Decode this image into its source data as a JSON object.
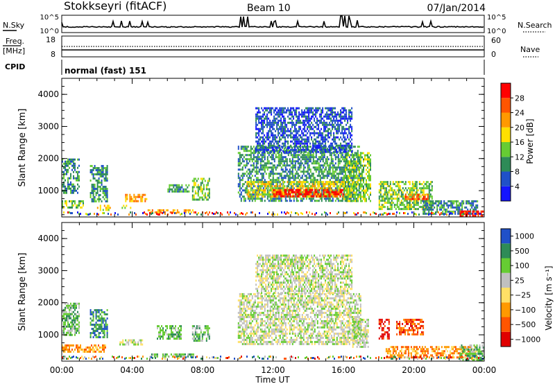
{
  "header": {
    "station": "Stokkseyri (fitACF)",
    "beam": "Beam 10",
    "date": "07/Jan/2014"
  },
  "panel_nsky": {
    "left_label": "N.Sky",
    "left_ticks": [
      "10^5",
      "10^0"
    ],
    "right_label": "N.Search",
    "right_ticks": [
      "10^5",
      "10^0"
    ]
  },
  "panel_freq": {
    "left_label_1": "Freq.",
    "left_label_2": "[MHz]",
    "left_ticks": [
      "18",
      "8"
    ],
    "right_label": "Nave",
    "right_ticks": [
      "60",
      "0"
    ]
  },
  "panel_cpid": {
    "label": "CPID",
    "value": "normal (fast) 151"
  },
  "colors": {
    "power": [
      "#1414ff",
      "#2050c8",
      "#2e8b57",
      "#66cc33",
      "#ffe000",
      "#ff9900",
      "#ff5500",
      "#ff0000"
    ],
    "velocity": [
      "#e00000",
      "#ff5500",
      "#ff9900",
      "#ffe066",
      "#c0c0c0",
      "#66cc33",
      "#2e8b57",
      "#2050c8"
    ]
  },
  "chart_data": [
    {
      "type": "heatmap",
      "name": "power",
      "ylabel": "Slant Range [km]",
      "yticks": [
        "1000",
        "2000",
        "3000",
        "4000"
      ],
      "ylim": [
        180,
        4500
      ],
      "xticks": [
        "00:00",
        "04:00",
        "08:00",
        "12:00",
        "16:00",
        "20:00",
        "00:00"
      ],
      "xlim": [
        0,
        24
      ],
      "colorbar_label": "Power [dB]",
      "colorbar_ticks": [
        "4",
        "8",
        "12",
        "16",
        "20",
        "24",
        "28"
      ],
      "colorbar_range": [
        0,
        30
      ],
      "regions": [
        {
          "t0": 0.0,
          "t1": 1.0,
          "r0": 900,
          "r1": 2000,
          "level": 2
        },
        {
          "t0": 0.0,
          "t1": 1.2,
          "r0": 500,
          "r1": 700,
          "level": 3
        },
        {
          "t0": 1.6,
          "t1": 2.6,
          "r0": 650,
          "r1": 1800,
          "level": 2
        },
        {
          "t0": 2.0,
          "t1": 2.8,
          "r0": 420,
          "r1": 560,
          "level": 4
        },
        {
          "t0": 3.6,
          "t1": 4.8,
          "r0": 700,
          "r1": 900,
          "level": 5
        },
        {
          "t0": 3.4,
          "t1": 3.9,
          "r0": 480,
          "r1": 560,
          "level": 4
        },
        {
          "t0": 4.8,
          "t1": 7.5,
          "r0": 300,
          "r1": 420,
          "level": 5
        },
        {
          "t0": 6.0,
          "t1": 7.2,
          "r0": 950,
          "r1": 1200,
          "level": 2
        },
        {
          "t0": 7.4,
          "t1": 8.4,
          "r0": 750,
          "r1": 1400,
          "level": 3
        },
        {
          "t0": 10.0,
          "t1": 17.0,
          "r0": 700,
          "r1": 2400,
          "level": 2
        },
        {
          "t0": 10.5,
          "t1": 16.5,
          "r0": 800,
          "r1": 1300,
          "level": 4
        },
        {
          "t0": 12.0,
          "t1": 16.0,
          "r0": 850,
          "r1": 1050,
          "level": 7
        },
        {
          "t0": 11.0,
          "t1": 16.5,
          "r0": 2200,
          "r1": 3600,
          "level": 1
        },
        {
          "t0": 16.0,
          "t1": 17.5,
          "r0": 700,
          "r1": 2200,
          "level": 3
        },
        {
          "t0": 18.0,
          "t1": 21.0,
          "r0": 400,
          "r1": 1300,
          "level": 3
        },
        {
          "t0": 19.5,
          "t1": 20.8,
          "r0": 750,
          "r1": 900,
          "level": 6
        },
        {
          "t0": 20.5,
          "t1": 23.6,
          "r0": 250,
          "r1": 700,
          "level": 2
        },
        {
          "t0": 22.6,
          "t1": 24.0,
          "r0": 230,
          "r1": 380,
          "level": 7
        }
      ]
    },
    {
      "type": "heatmap",
      "name": "velocity",
      "ylabel": "Slant Range [km]",
      "yticks": [
        "1000",
        "2000",
        "3000",
        "4000"
      ],
      "ylim": [
        180,
        4500
      ],
      "xticks": [
        "00:00",
        "04:00",
        "08:00",
        "12:00",
        "16:00",
        "20:00",
        "00:00"
      ],
      "xlim": [
        0,
        24
      ],
      "xlabel": "Time UT",
      "colorbar_label": "Velocity [m s⁻¹]",
      "colorbar_ticks": [
        "1000",
        "500",
        "100",
        "25",
        "−25",
        "−100",
        "−500",
        "−1000"
      ],
      "regions": [
        {
          "t0": 0.0,
          "t1": 1.0,
          "r0": 1000,
          "r1": 2000,
          "level": 5
        },
        {
          "t0": 0.0,
          "t1": 2.5,
          "r0": 450,
          "r1": 700,
          "level": 2
        },
        {
          "t0": 1.6,
          "t1": 2.6,
          "r0": 900,
          "r1": 1800,
          "level": 6
        },
        {
          "t0": 3.2,
          "t1": 4.6,
          "r0": 700,
          "r1": 860,
          "level": 4
        },
        {
          "t0": 5.0,
          "t1": 7.5,
          "r0": 300,
          "r1": 420,
          "level": 5
        },
        {
          "t0": 5.4,
          "t1": 6.8,
          "r0": 900,
          "r1": 1300,
          "level": 5
        },
        {
          "t0": 7.4,
          "t1": 8.4,
          "r0": 800,
          "r1": 1300,
          "level": 5
        },
        {
          "t0": 10.0,
          "t1": 17.0,
          "r0": 700,
          "r1": 2300,
          "level": 4
        },
        {
          "t0": 11.0,
          "t1": 16.5,
          "r0": 2300,
          "r1": 3500,
          "level": 4
        },
        {
          "t0": 16.5,
          "t1": 17.4,
          "r0": 600,
          "r1": 1500,
          "level": 4
        },
        {
          "t0": 18.0,
          "t1": 18.6,
          "r0": 900,
          "r1": 1500,
          "level": 0
        },
        {
          "t0": 19.0,
          "t1": 20.5,
          "r0": 1000,
          "r1": 1500,
          "level": 1
        },
        {
          "t0": 18.4,
          "t1": 23.6,
          "r0": 300,
          "r1": 650,
          "level": 2
        },
        {
          "t0": 22.6,
          "t1": 24.0,
          "r0": 230,
          "r1": 700,
          "level": 5
        }
      ]
    }
  ]
}
